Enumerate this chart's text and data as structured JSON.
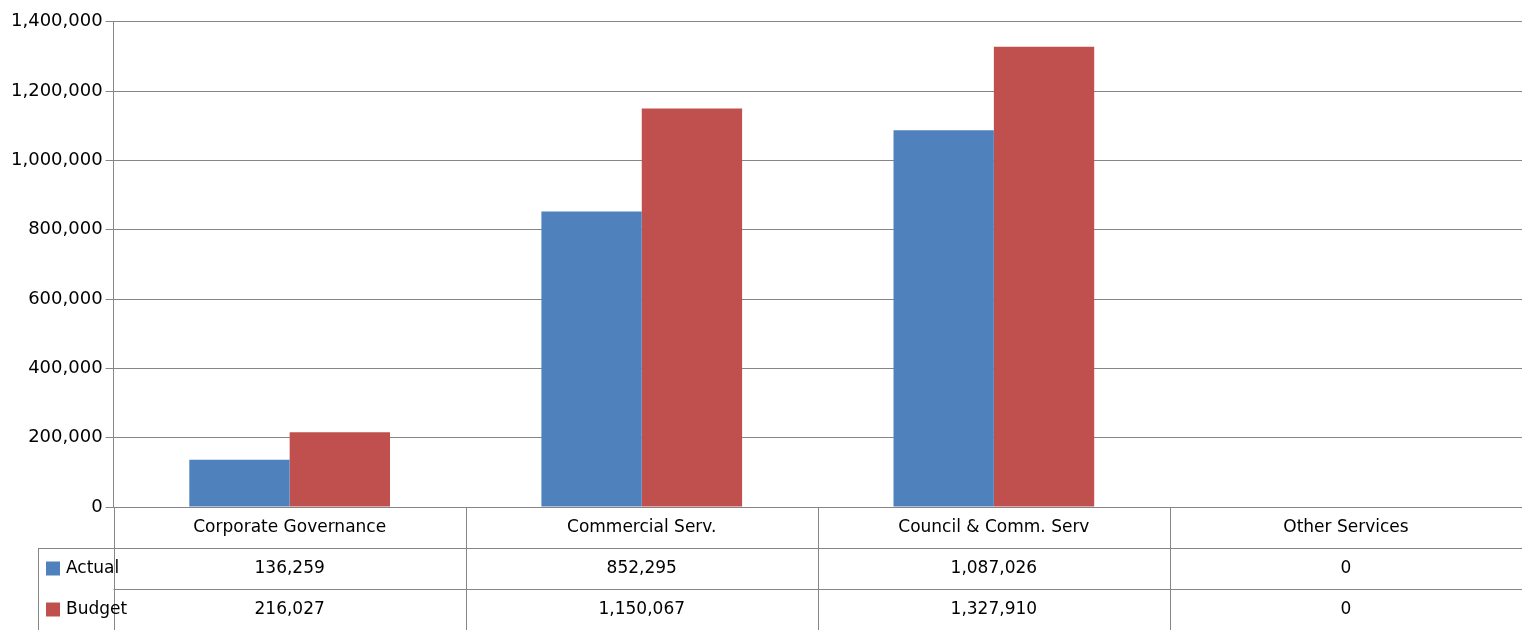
{
  "chart_data": {
    "type": "bar",
    "categories": [
      "Corporate Governance",
      "Commercial Serv.",
      "Council & Comm. Serv",
      "Other Services"
    ],
    "series": [
      {
        "name": "Actual",
        "color": "#4f81bd",
        "values": [
          136259,
          852295,
          1087026,
          0
        ],
        "value_labels": [
          "136,259",
          "852,295",
          "1,087,026",
          "0"
        ]
      },
      {
        "name": "Budget",
        "color": "#c0504d",
        "values": [
          216027,
          1150067,
          1327910,
          0
        ],
        "value_labels": [
          "216,027",
          "1,150,067",
          "1,327,910",
          "0"
        ]
      }
    ],
    "ylim": [
      0,
      1400000
    ],
    "yticks": [
      0,
      {
        "value": 200000,
        "label": "200,000"
      },
      {
        "value": 400000,
        "label": "400,000"
      },
      {
        "value": 600000,
        "label": "600,000"
      },
      {
        "value": 800000,
        "label": "800,000"
      },
      {
        "value": 1000000,
        "label": "1,000,000"
      },
      {
        "value": 1200000,
        "label": "1,200,000"
      },
      {
        "value": 1400000,
        "label": "1,400,000"
      }
    ],
    "grid": "y",
    "legend": "bottom"
  }
}
